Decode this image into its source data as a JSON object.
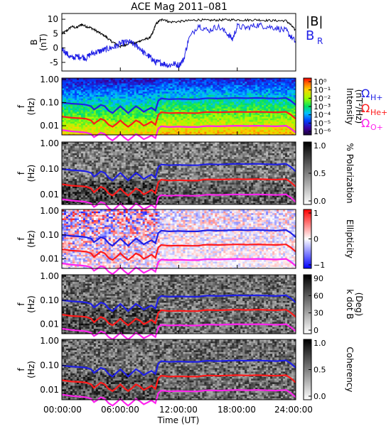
{
  "figure": {
    "title": "ACE Mag 2011–081",
    "time_axis_label": "Time (UT)",
    "time_ticks": [
      "00:00:00",
      "06:00:00",
      "12:00:00",
      "18:00:00",
      "24:00:00"
    ],
    "trace_colors": {
      "h_plus": "#1f1fe6",
      "he_plus": "#ff1a1a",
      "o_plus": "#ff22ee",
      "b_total": "#000000",
      "b_r": "#1f1fe6"
    }
  },
  "chart_data": [
    {
      "type": "line",
      "name": "field",
      "ylabel": "B",
      "yunit": "(nT)",
      "yticks": [
        "10",
        "5",
        "0",
        "-5"
      ],
      "ylim": [
        -8,
        12
      ],
      "xlim": [
        0,
        24
      ],
      "legend": [
        "|B|",
        "B_R"
      ],
      "series": [
        {
          "name": "|B|",
          "x": [
            0,
            0.5,
            1,
            1.5,
            2,
            2.5,
            3,
            3.5,
            4,
            4.5,
            5,
            5.5,
            6,
            6.5,
            7,
            7.5,
            8,
            8.5,
            9,
            9.3,
            9.6,
            10,
            10.5,
            11,
            12,
            13,
            14,
            15,
            16,
            17,
            18,
            19,
            20,
            21,
            22,
            23,
            23.5,
            24
          ],
          "values": [
            5,
            6,
            7.5,
            7,
            8.2,
            7.5,
            7,
            6,
            5,
            4,
            2.5,
            1.5,
            0.5,
            1,
            2,
            1.5,
            2.5,
            3,
            3.5,
            5,
            8,
            9.5,
            10,
            9,
            9.2,
            9.5,
            9.8,
            9.6,
            9.7,
            9.8,
            9.8,
            9.7,
            9.8,
            9.6,
            9.5,
            9.5,
            8,
            6
          ]
        },
        {
          "name": "B_R",
          "x": [
            0,
            0.5,
            1,
            1.5,
            2,
            2.5,
            3,
            3.5,
            4,
            4.5,
            5,
            5.5,
            6,
            6.5,
            7,
            7.5,
            8,
            8.5,
            9,
            9.3,
            9.6,
            10,
            10.5,
            11,
            11.5,
            12,
            12.5,
            13,
            14,
            15,
            16,
            17,
            17.5,
            18,
            19,
            20,
            21,
            22,
            23,
            23.5,
            24
          ],
          "values": [
            0,
            -2,
            -3.5,
            -3,
            -3,
            -3.5,
            -2,
            -1.5,
            -1,
            -0.5,
            0,
            0.5,
            1.5,
            2,
            2,
            1,
            0,
            -2,
            -3,
            -4,
            -5,
            -5,
            -5.5,
            -6,
            -5.5,
            -6,
            -4,
            3,
            8,
            6,
            7.5,
            5,
            3,
            7.5,
            7,
            8,
            7.5,
            7,
            6,
            4,
            2
          ]
        }
      ]
    },
    {
      "type": "heatmap",
      "name": "intensity",
      "ylabel": "f",
      "yunit": "(Hz)",
      "yscale": "log",
      "yticks": [
        "1.00",
        "0.10",
        "0.01"
      ],
      "colorbar": {
        "label": "Intensity",
        "label2": "(nT²/Hz)",
        "scale": "rainbow",
        "ticks": [
          "10⁰",
          "10⁻¹",
          "10⁻²",
          "10⁻³",
          "10⁻⁴",
          "10⁻⁵",
          "10⁻⁶"
        ]
      },
      "legend": [
        "ΩH+",
        "ΩHe+",
        "ΩO+"
      ]
    },
    {
      "type": "heatmap",
      "name": "polarization",
      "ylabel": "f",
      "yunit": "(Hz)",
      "yscale": "log",
      "yticks": [
        "1.00",
        "0.10",
        "0.01"
      ],
      "colorbar": {
        "label": "% Polarization",
        "scale": "grayscale",
        "ticks": [
          "1.0",
          "0.5",
          "0.0"
        ]
      }
    },
    {
      "type": "heatmap",
      "name": "ellipticity",
      "ylabel": "f",
      "yunit": "(Hz)",
      "yscale": "log",
      "yticks": [
        "1.00",
        "0.10",
        "0.01"
      ],
      "colorbar": {
        "label": "Ellipticity",
        "scale": "blue-white-red",
        "ticks": [
          "1",
          "0",
          "−1"
        ]
      }
    },
    {
      "type": "heatmap",
      "name": "kdotb",
      "ylabel": "f",
      "yunit": "(Hz)",
      "yscale": "log",
      "yticks": [
        "1.00",
        "0.10",
        "0.01"
      ],
      "colorbar": {
        "label": "k dot B",
        "label2": "(Deg)",
        "scale": "grayscale",
        "ticks": [
          "90",
          "60",
          "30",
          "0"
        ]
      }
    },
    {
      "type": "heatmap",
      "name": "coherency",
      "ylabel": "f",
      "yunit": "(Hz)",
      "yscale": "log",
      "yticks": [
        "1.00",
        "0.10",
        "0.01"
      ],
      "colorbar": {
        "label": "Coherency",
        "scale": "grayscale",
        "ticks": [
          "1.0",
          "0.5",
          "0.0"
        ]
      }
    }
  ],
  "gyrofrequency_hz": {
    "x": [
      0,
      1,
      2,
      2.5,
      3,
      3.3,
      3.6,
      4,
      4.4,
      4.8,
      5.2,
      5.6,
      6,
      6.4,
      6.8,
      7.2,
      7.6,
      8,
      8.4,
      8.8,
      9.2,
      9.6,
      9.9,
      10.2,
      11,
      12,
      13,
      14,
      14.5,
      15,
      16,
      17,
      18,
      19,
      20,
      21,
      22,
      23,
      23.5,
      24
    ],
    "h_plus": [
      0.1,
      0.09,
      0.085,
      0.08,
      0.07,
      0.05,
      0.06,
      0.08,
      0.07,
      0.045,
      0.035,
      0.05,
      0.07,
      0.05,
      0.035,
      0.05,
      0.07,
      0.055,
      0.04,
      0.05,
      0.06,
      0.045,
      0.12,
      0.15,
      0.14,
      0.145,
      0.14,
      0.14,
      0.15,
      0.155,
      0.15,
      0.155,
      0.16,
      0.155,
      0.16,
      0.155,
      0.15,
      0.16,
      0.12,
      0.08
    ],
    "he_plus": [
      0.025,
      0.022,
      0.021,
      0.02,
      0.017,
      0.012,
      0.015,
      0.02,
      0.017,
      0.011,
      0.009,
      0.012,
      0.017,
      0.012,
      0.009,
      0.012,
      0.017,
      0.014,
      0.01,
      0.012,
      0.015,
      0.011,
      0.03,
      0.038,
      0.035,
      0.036,
      0.035,
      0.035,
      0.038,
      0.039,
      0.038,
      0.039,
      0.04,
      0.039,
      0.04,
      0.039,
      0.038,
      0.04,
      0.03,
      0.02
    ],
    "o_plus": [
      0.0065,
      0.0057,
      0.0053,
      0.005,
      0.0044,
      0.0032,
      0.0038,
      0.005,
      0.0044,
      0.0029,
      0.0023,
      0.0031,
      0.0044,
      0.0031,
      0.0023,
      0.0031,
      0.0044,
      0.0035,
      0.0026,
      0.0031,
      0.0038,
      0.0029,
      0.0075,
      0.0094,
      0.0088,
      0.0091,
      0.0088,
      0.0088,
      0.0094,
      0.0097,
      0.0094,
      0.0097,
      0.01,
      0.0097,
      0.01,
      0.0097,
      0.0094,
      0.01,
      0.0075,
      0.005
    ]
  }
}
